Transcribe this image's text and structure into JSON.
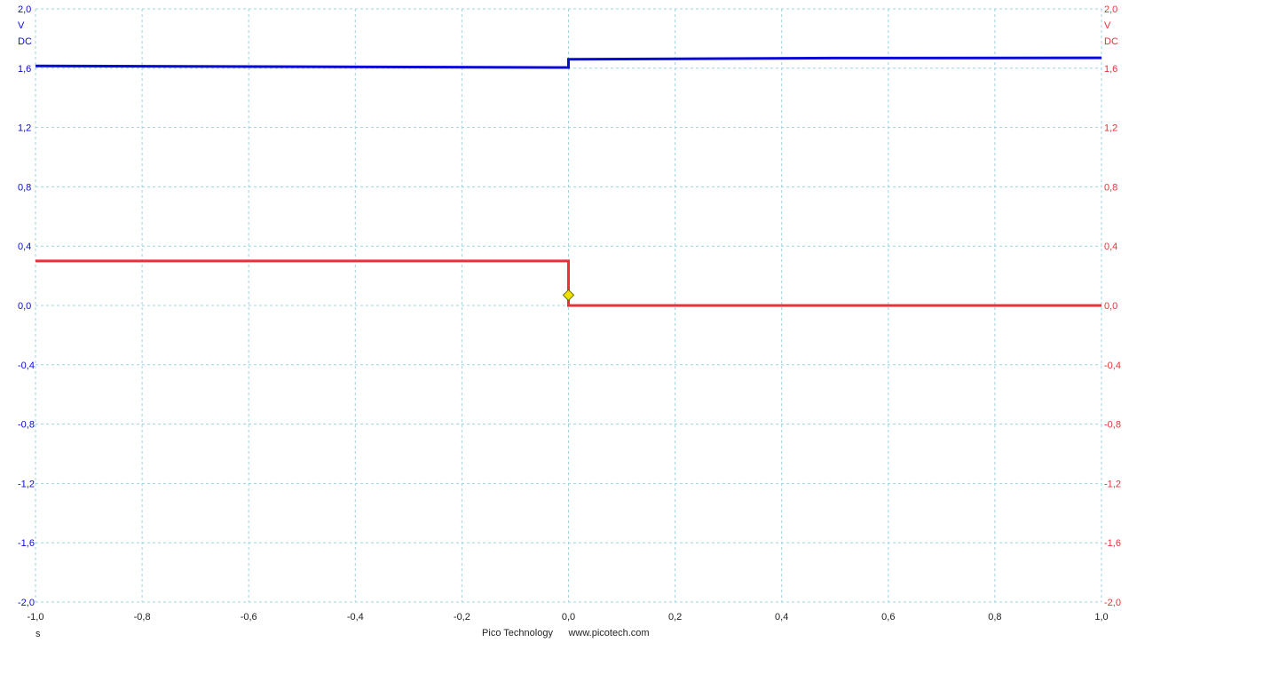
{
  "chart_data": {
    "type": "line",
    "x": {
      "unit": "s",
      "range": [
        -1.0,
        1.0
      ],
      "ticks": [
        -1.0,
        -0.8,
        -0.6,
        -0.4,
        -0.2,
        0.0,
        0.2,
        0.4,
        0.6,
        0.8,
        1.0
      ],
      "tick_labels": [
        "-1,0",
        "-0,8",
        "-0,6",
        "-0,4",
        "-0,2",
        "0,0",
        "0,2",
        "0,4",
        "0,6",
        "0,8",
        "1,0"
      ]
    },
    "y_left": {
      "unit_lines": [
        "V",
        "DC"
      ],
      "range": [
        -2.0,
        2.0
      ],
      "ticks": [
        2.0,
        1.6,
        1.2,
        0.8,
        0.4,
        0.0,
        -0.4,
        -0.8,
        -1.2,
        -1.6,
        -2.0
      ],
      "tick_labels": [
        "2,0",
        "1,6",
        "1,2",
        "0,8",
        "0,4",
        "0,0",
        "-0,4",
        "-0,8",
        "-1,2",
        "-1,6",
        "-2,0"
      ],
      "color": "#0a0ad8"
    },
    "y_right": {
      "unit_lines": [
        "V",
        "DC"
      ],
      "range": [
        -2.0,
        2.0
      ],
      "ticks": [
        2.0,
        1.6,
        1.2,
        0.8,
        0.4,
        0.0,
        -0.4,
        -0.8,
        -1.2,
        -1.6,
        -2.0
      ],
      "tick_labels": [
        "2,0",
        "1,6",
        "1,2",
        "0,8",
        "0,4",
        "0,0",
        "-0,4",
        "-0,8",
        "-1,2",
        "-1,6",
        "-2,0"
      ],
      "color": "#e8323a"
    },
    "grid": true,
    "grid_color": "#9fd3dd",
    "series": [
      {
        "axis": "left",
        "color": "#0a0ad8",
        "points": [
          [
            -1.0,
            1.615
          ],
          [
            -0.5,
            1.61
          ],
          [
            -0.02,
            1.605
          ],
          [
            0.0,
            1.605
          ],
          [
            0.0,
            1.66
          ],
          [
            0.5,
            1.668
          ],
          [
            1.0,
            1.67
          ]
        ]
      },
      {
        "axis": "right",
        "color": "#e8323a",
        "points": [
          [
            -1.0,
            0.3
          ],
          [
            0.0,
            0.3
          ],
          [
            0.0,
            0.0
          ],
          [
            1.0,
            0.0
          ]
        ]
      }
    ],
    "trigger": {
      "x": 0.0,
      "y": 0.07,
      "color": "#f0e000"
    }
  },
  "footer": {
    "brand": "Pico Technology",
    "url": "www.picotech.com"
  }
}
